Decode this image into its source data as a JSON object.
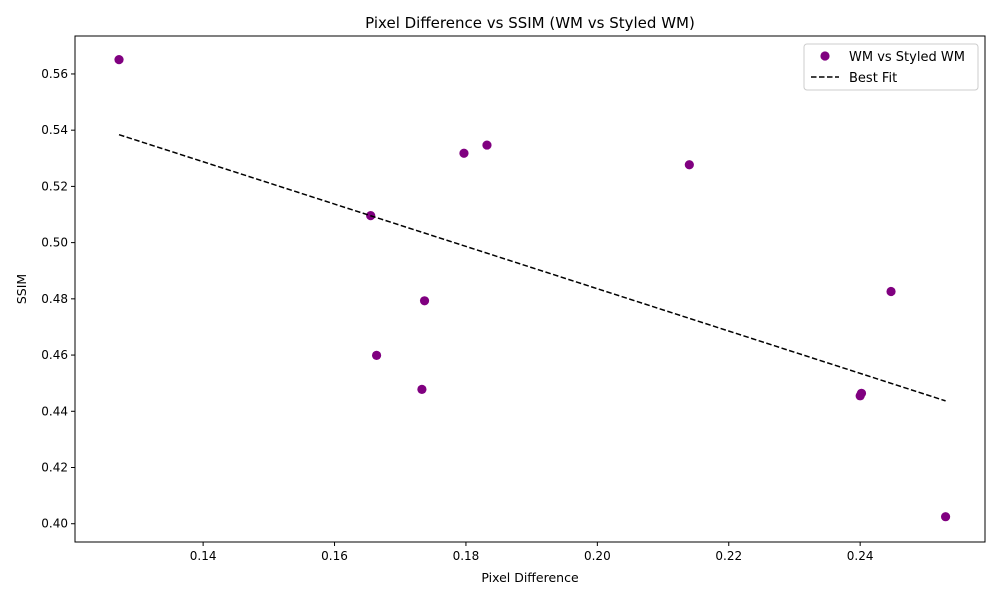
{
  "chart_data": {
    "type": "scatter",
    "title": "Pixel Difference vs SSIM (WM vs Styled WM)",
    "xlabel": "Pixel Difference",
    "ylabel": "SSIM",
    "xlim": [
      0.1205,
      0.259
    ],
    "ylim": [
      0.3935,
      0.5735
    ],
    "xticks": [
      "0.14",
      "0.16",
      "0.18",
      "0.20",
      "0.22",
      "0.24"
    ],
    "yticks": [
      "0.40",
      "0.42",
      "0.44",
      "0.46",
      "0.48",
      "0.50",
      "0.52",
      "0.54",
      "0.56"
    ],
    "grid": false,
    "legend_position": "top-right",
    "series": [
      {
        "name": "WM vs Styled WM",
        "kind": "scatter",
        "color": "#800080",
        "points": [
          {
            "x": 0.1272,
            "y": 0.5651
          },
          {
            "x": 0.1797,
            "y": 0.5318
          },
          {
            "x": 0.1832,
            "y": 0.5347
          },
          {
            "x": 0.214,
            "y": 0.5277
          },
          {
            "x": 0.1655,
            "y": 0.5096
          },
          {
            "x": 0.1737,
            "y": 0.4793
          },
          {
            "x": 0.1664,
            "y": 0.4599
          },
          {
            "x": 0.1733,
            "y": 0.4478
          },
          {
            "x": 0.2447,
            "y": 0.4826
          },
          {
            "x": 0.2402,
            "y": 0.4464
          },
          {
            "x": 0.24,
            "y": 0.4455
          },
          {
            "x": 0.253,
            "y": 0.4025
          }
        ]
      },
      {
        "name": "Best Fit",
        "kind": "line",
        "dash": "dashed",
        "color": "#000000",
        "points": [
          {
            "x": 0.1272,
            "y": 0.5384
          },
          {
            "x": 0.253,
            "y": 0.4437
          }
        ]
      }
    ]
  }
}
